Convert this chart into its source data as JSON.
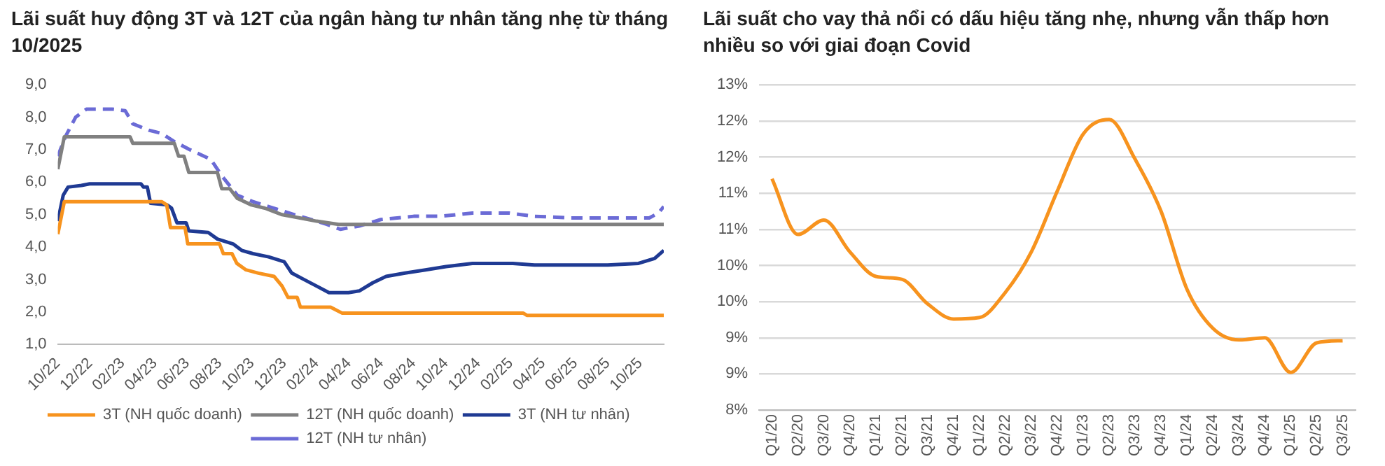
{
  "chart_data": [
    {
      "type": "line",
      "title": "Lãi suất huy động 3T và 12T của ngân hàng tư nhân tăng nhẹ từ tháng 10/2025",
      "legend": "bottom",
      "grid": false,
      "marker": "none",
      "xlim": [
        "2022-10-01",
        "2025-11-15"
      ],
      "xticks": [
        {
          "value": "2022-10-01",
          "label": "10/22"
        },
        {
          "value": "2022-12-01",
          "label": "12/22"
        },
        {
          "value": "2023-02-01",
          "label": "02/23"
        },
        {
          "value": "2023-04-01",
          "label": "04/23"
        },
        {
          "value": "2023-06-01",
          "label": "06/23"
        },
        {
          "value": "2023-08-01",
          "label": "08/23"
        },
        {
          "value": "2023-10-01",
          "label": "10/23"
        },
        {
          "value": "2023-12-01",
          "label": "12/23"
        },
        {
          "value": "2024-02-01",
          "label": "02/24"
        },
        {
          "value": "2024-04-01",
          "label": "04/24"
        },
        {
          "value": "2024-06-01",
          "label": "06/24"
        },
        {
          "value": "2024-08-01",
          "label": "08/24"
        },
        {
          "value": "2024-10-01",
          "label": "10/24"
        },
        {
          "value": "2024-12-01",
          "label": "12/24"
        },
        {
          "value": "2025-02-01",
          "label": "02/25"
        },
        {
          "value": "2025-04-01",
          "label": "04/25"
        },
        {
          "value": "2025-06-01",
          "label": "06/25"
        },
        {
          "value": "2025-08-01",
          "label": "08/25"
        },
        {
          "value": "2025-10-01",
          "label": "10/25"
        }
      ],
      "ylim": [
        1,
        9
      ],
      "yticks": [
        {
          "value": 1,
          "label": "1,0"
        },
        {
          "value": 2,
          "label": "2,0"
        },
        {
          "value": 3,
          "label": "3,0"
        },
        {
          "value": 4,
          "label": "4,0"
        },
        {
          "value": 5,
          "label": "5,0"
        },
        {
          "value": 6,
          "label": "6,0"
        },
        {
          "value": 7,
          "label": "7,0"
        },
        {
          "value": 8,
          "label": "8,0"
        },
        {
          "value": 9,
          "label": "9,0"
        }
      ],
      "series": [
        {
          "name": "3T (NH quốc doanh)",
          "color": "#f7931e",
          "line_style": "solid",
          "x": [
            "2022-10-01",
            "2022-10-13",
            "2023-04-14",
            "2023-04-23",
            "2023-04-30",
            "2023-05-27",
            "2023-06-02",
            "2023-08-01",
            "2023-08-08",
            "2023-08-24",
            "2023-09-03",
            "2023-09-20",
            "2023-10-13",
            "2023-11-12",
            "2023-11-27",
            "2023-12-08",
            "2023-12-25",
            "2024-01-01",
            "2024-02-27",
            "2024-03-18",
            "2025-02-24",
            "2025-03-01",
            "2025-11-15"
          ],
          "values": [
            4.4,
            5.4,
            5.4,
            5.3,
            4.6,
            4.6,
            4.1,
            4.1,
            3.8,
            3.8,
            3.5,
            3.3,
            3.2,
            3.1,
            2.8,
            2.45,
            2.45,
            2.15,
            2.15,
            1.97,
            1.97,
            1.9,
            1.9
          ]
        },
        {
          "name": "12T (NH quốc doanh)",
          "color": "#808080",
          "line_style": "solid",
          "x": [
            "2022-10-01",
            "2022-10-13",
            "2023-02-15",
            "2023-02-20",
            "2023-05-07",
            "2023-05-15",
            "2023-05-25",
            "2023-06-04",
            "2023-07-27",
            "2023-08-05",
            "2023-08-20",
            "2023-09-04",
            "2023-09-30",
            "2023-10-25",
            "2023-11-27",
            "2023-12-30",
            "2024-02-01",
            "2024-03-12",
            "2025-11-15"
          ],
          "values": [
            6.4,
            7.4,
            7.4,
            7.2,
            7.2,
            6.8,
            6.8,
            6.3,
            6.3,
            5.8,
            5.8,
            5.5,
            5.3,
            5.2,
            5.0,
            4.9,
            4.8,
            4.7,
            4.7
          ]
        },
        {
          "name": "3T (NH tư nhân)",
          "color": "#1f3a93",
          "line_style": "solid",
          "x": [
            "2022-10-01",
            "2022-10-11",
            "2022-10-20",
            "2022-11-15",
            "2022-11-30",
            "2023-03-05",
            "2023-03-10",
            "2023-03-17",
            "2023-03-23",
            "2023-04-24",
            "2023-05-02",
            "2023-05-12",
            "2023-05-29",
            "2023-06-04",
            "2023-07-10",
            "2023-07-27",
            "2023-08-26",
            "2023-09-12",
            "2023-10-03",
            "2023-11-02",
            "2023-12-01",
            "2023-12-15",
            "2024-01-08",
            "2024-02-01",
            "2024-02-24",
            "2024-03-30",
            "2024-04-20",
            "2024-05-15",
            "2024-06-10",
            "2024-07-15",
            "2024-08-23",
            "2024-10-01",
            "2024-11-20",
            "2025-02-05",
            "2025-03-15",
            "2025-08-01",
            "2025-09-28",
            "2025-10-28",
            "2025-11-15"
          ],
          "values": [
            4.8,
            5.6,
            5.85,
            5.9,
            5.95,
            5.95,
            5.85,
            5.85,
            5.35,
            5.3,
            5.2,
            4.75,
            4.75,
            4.5,
            4.45,
            4.25,
            4.1,
            3.9,
            3.8,
            3.7,
            3.55,
            3.2,
            3.0,
            2.8,
            2.6,
            2.6,
            2.65,
            2.9,
            3.1,
            3.2,
            3.3,
            3.4,
            3.5,
            3.5,
            3.45,
            3.45,
            3.5,
            3.65,
            3.9
          ]
        },
        {
          "name": "12T (NH tư nhân)",
          "color": "#6b6bd6",
          "line_style": "dashed",
          "x": [
            "2022-10-01",
            "2022-10-15",
            "2022-11-04",
            "2022-11-24",
            "2023-01-12",
            "2023-02-06",
            "2023-02-20",
            "2023-03-20",
            "2023-04-14",
            "2023-05-07",
            "2023-06-06",
            "2023-07-15",
            "2023-08-05",
            "2023-09-04",
            "2023-10-03",
            "2023-11-12",
            "2023-12-20",
            "2024-02-01",
            "2024-02-20",
            "2024-03-15",
            "2024-04-20",
            "2024-05-30",
            "2024-08-01",
            "2024-09-20",
            "2024-11-20",
            "2025-01-28",
            "2025-03-15",
            "2025-05-23",
            "2025-08-01",
            "2025-10-18",
            "2025-11-05",
            "2025-11-15"
          ],
          "values": [
            6.8,
            7.4,
            8.0,
            8.25,
            8.25,
            8.2,
            7.8,
            7.6,
            7.5,
            7.25,
            7.0,
            6.7,
            6.2,
            5.6,
            5.4,
            5.2,
            5.0,
            4.8,
            4.7,
            4.55,
            4.65,
            4.85,
            4.95,
            4.95,
            5.05,
            5.05,
            4.95,
            4.9,
            4.9,
            4.9,
            5.05,
            5.25
          ]
        }
      ]
    },
    {
      "type": "line",
      "title": "Lãi suất cho vay thả nổi có dấu hiệu tăng nhẹ, nhưng vẫn thấp hơn nhiều so với giai đoạn Covid",
      "legend": false,
      "grid": "y",
      "marker": "none",
      "categories": [
        "Q1/20",
        "Q2/20",
        "Q3/20",
        "Q4/20",
        "Q1/21",
        "Q2/21",
        "Q3/21",
        "Q4/21",
        "Q1/22",
        "Q2/22",
        "Q3/22",
        "Q4/22",
        "Q1/23",
        "Q2/23",
        "Q3/23",
        "Q4/23",
        "Q1/24",
        "Q2/24",
        "Q3/24",
        "Q4/24",
        "Q1/25",
        "Q2/25",
        "Q3/25"
      ],
      "ylim": [
        8,
        12.5
      ],
      "yticks": [
        {
          "value": 8,
          "label": "8%"
        },
        {
          "value": 8.5,
          "label": "9%"
        },
        {
          "value": 9,
          "label": "9%"
        },
        {
          "value": 9.5,
          "label": "10%"
        },
        {
          "value": 10,
          "label": "10%"
        },
        {
          "value": 10.5,
          "label": "11%"
        },
        {
          "value": 11,
          "label": "11%"
        },
        {
          "value": 11.5,
          "label": "12%"
        },
        {
          "value": 12,
          "label": "12%"
        },
        {
          "value": 12.5,
          "label": "13%"
        }
      ],
      "series": [
        {
          "color": "#f7931e",
          "line_style": "solid",
          "values": [
            11.2,
            10.43,
            10.63,
            10.19,
            9.85,
            9.81,
            9.47,
            9.26,
            9.28,
            9.63,
            10.19,
            11.03,
            11.82,
            12.02,
            11.47,
            10.75,
            9.67,
            9.13,
            8.97,
            9.0,
            8.52,
            8.93,
            8.96
          ]
        }
      ]
    }
  ]
}
